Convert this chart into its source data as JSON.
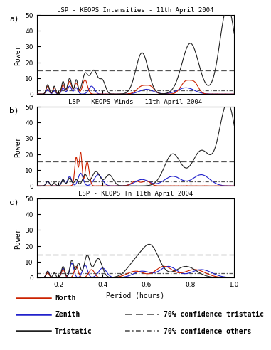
{
  "titles": [
    "LSP - KEOPS Intensities - 11th April 2004",
    "LSP - KEOPS Winds - 11th April 2004",
    "LSP - KEOPS Tn 11th April 2004"
  ],
  "panel_labels": [
    "a)",
    "b)",
    "c)"
  ],
  "xlabel": "Period (hours)",
  "ylabel": "Power",
  "xlim": [
    0.1,
    1.0
  ],
  "ylim": [
    0,
    50
  ],
  "yticks": [
    0,
    10,
    20,
    30,
    40,
    50
  ],
  "xticks": [
    0.2,
    0.4,
    0.6,
    0.8,
    1.0
  ],
  "conf_tristatic_a": 15.0,
  "conf_others_a": 2.5,
  "conf_tristatic_b": 15.5,
  "conf_others_b": 3.0,
  "conf_tristatic_c": 14.5,
  "conf_others_c": 3.0,
  "north_color": "#cc2200",
  "zenith_color": "#2222cc",
  "tristatic_color": "#222222",
  "conf_tristatic_color": "#555555",
  "conf_others_color": "#555555",
  "bg_color": "#ffffff",
  "legend_north": "North",
  "legend_zenith": "Zenith",
  "legend_tristatic": "Tristatic",
  "legend_conf_tris": "70% confidence tristatic",
  "legend_conf_oth": "70% confidence others"
}
